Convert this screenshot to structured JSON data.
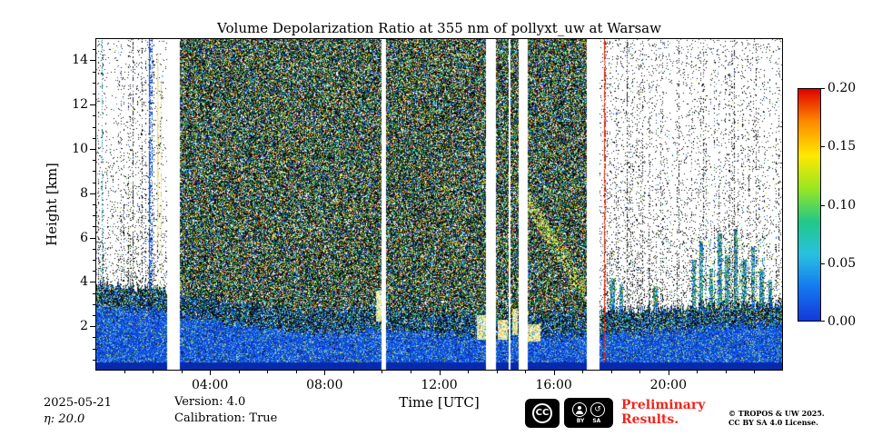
{
  "header": {
    "title": "Volume Depolarization Ratio at 355 nm of pollyxt_uw at Warsaw"
  },
  "axes": {
    "xlabel": "Time [UTC]",
    "ylabel": "Height [km]",
    "x_ticks": [
      {
        "hour": 4,
        "label": "04:00"
      },
      {
        "hour": 8,
        "label": "08:00"
      },
      {
        "hour": 12,
        "label": "12:00"
      },
      {
        "hour": 16,
        "label": "16:00"
      },
      {
        "hour": 20,
        "label": "20:00"
      }
    ],
    "y_ticks": [
      {
        "km": 2,
        "label": "2"
      },
      {
        "km": 4,
        "label": "4"
      },
      {
        "km": 6,
        "label": "6"
      },
      {
        "km": 8,
        "label": "8"
      },
      {
        "km": 10,
        "label": "10"
      },
      {
        "km": 12,
        "label": "12"
      },
      {
        "km": 14,
        "label": "14"
      }
    ]
  },
  "colorbar": {
    "tick_labels_top_to_bottom": [
      "0.20",
      "0.15",
      "0.10",
      "0.05",
      "0.00"
    ],
    "colors_top_to_bottom": [
      "#e00000",
      "#ff8c00",
      "#ffe800",
      "#9ae622",
      "#22c888",
      "#28c0e0",
      "#1478f0",
      "#1338d8"
    ]
  },
  "footer": {
    "date": "2025-05-21",
    "eta": "η: 20.0",
    "version": "Version: 4.0",
    "calibration": "Calibration: True",
    "preliminary_line1": "Preliminary",
    "preliminary_line2": "Results.",
    "copyright_line1": "© TROPOS & UW 2025.",
    "copyright_line2": "CC BY SA 4.0 License.",
    "cc": {
      "cc": "CC",
      "by": "BY",
      "sa": "SA",
      "sa_symbol": "↺"
    }
  },
  "chart_data": {
    "type": "heatmap",
    "title": "Volume Depolarization Ratio at 355 nm of pollyxt_uw at Warsaw",
    "xlabel": "Time [UTC]",
    "ylabel": "Height [km]",
    "xlim_hours": [
      0,
      24
    ],
    "ylim_km": [
      0,
      15
    ],
    "value_range": [
      0.0,
      0.2
    ],
    "colormap": "jet",
    "x_tick_hours": [
      4,
      8,
      12,
      16,
      20
    ],
    "x_tick_labels": [
      "04:00",
      "08:00",
      "12:00",
      "16:00",
      "20:00"
    ],
    "y_tick_km": [
      2,
      4,
      6,
      8,
      10,
      12,
      14
    ],
    "colorbar_ticks": [
      0.0,
      0.05,
      0.1,
      0.15,
      0.2
    ],
    "data_gaps_hours": [
      [
        2.52,
        2.95
      ],
      [
        10.0,
        10.13
      ],
      [
        13.63,
        13.98
      ],
      [
        14.42,
        14.5
      ],
      [
        14.78,
        15.08
      ],
      [
        17.15,
        17.6
      ]
    ],
    "dense_noise_region_hours": [
      2.95,
      17.15
    ],
    "sparse_regions_hours": [
      [
        0,
        2.52
      ],
      [
        17.6,
        24
      ]
    ],
    "surface_layer_top_km": [
      [
        0,
        3.9
      ],
      [
        2,
        3.7
      ],
      [
        4,
        3.2
      ],
      [
        6,
        2.9
      ],
      [
        8,
        2.7
      ],
      [
        10,
        2.9
      ],
      [
        12,
        2.6
      ],
      [
        14,
        2.5
      ],
      [
        16,
        2.6
      ],
      [
        18,
        2.7
      ],
      [
        20,
        2.8
      ],
      [
        22,
        3.0
      ],
      [
        24,
        3.0
      ]
    ],
    "bright_patches": [
      {
        "t": [
          9.8,
          10.0
        ],
        "h": [
          2.2,
          3.6
        ]
      },
      {
        "t": [
          13.3,
          13.62
        ],
        "h": [
          1.4,
          2.5
        ]
      },
      {
        "t": [
          14.05,
          14.4
        ],
        "h": [
          1.4,
          2.3
        ]
      },
      {
        "t": [
          14.55,
          14.75
        ],
        "h": [
          1.6,
          2.8
        ]
      },
      {
        "t": [
          15.1,
          15.55
        ],
        "h": [
          1.3,
          2.1
        ]
      }
    ],
    "descending_layer": {
      "t": [
        14.9,
        17.1
      ],
      "h_start": 8.0,
      "h_end": 3.6,
      "width_km": 1.0
    },
    "vertical_lines": [
      {
        "t": 0.22,
        "h": [
          3.8,
          15
        ],
        "color": "#0a8890",
        "p": 0.45,
        "w": 1
      },
      {
        "t": 1.3,
        "h": [
          3.8,
          15
        ],
        "color": "#222222",
        "p": 0.5,
        "w": 1
      },
      {
        "t": 1.62,
        "h": [
          3.8,
          15
        ],
        "color": "#1a1a1a",
        "p": 0.35,
        "w": 1
      },
      {
        "t": 1.86,
        "h": [
          3.6,
          15
        ],
        "color": "#0a50d8",
        "p": 0.9,
        "w": 2
      },
      {
        "t": 1.98,
        "h": [
          3.6,
          15
        ],
        "color": "#083cb0",
        "p": 0.5,
        "w": 1
      },
      {
        "t": 2.16,
        "h": [
          5.5,
          14.2
        ],
        "color": "#e6dc8c",
        "p": 0.75,
        "w": 2
      },
      {
        "t": 2.28,
        "h": [
          4.5,
          13
        ],
        "color": "#d8cc5a",
        "p": 0.45,
        "w": 1
      },
      {
        "t": 17.75,
        "h": [
          0.4,
          15
        ],
        "color": "#d42a10",
        "p": 0.9,
        "w": 2
      },
      {
        "t": 18.55,
        "h": [
          4,
          15
        ],
        "color": "#202020",
        "p": 0.4,
        "w": 1
      },
      {
        "t": 19.1,
        "h": [
          4,
          15
        ],
        "color": "#202020",
        "p": 0.3,
        "w": 1
      },
      {
        "t": 20.35,
        "h": [
          4,
          15
        ],
        "color": "#202020",
        "p": 0.35,
        "w": 1
      },
      {
        "t": 21.2,
        "h": [
          4,
          15
        ],
        "color": "#282828",
        "p": 0.3,
        "w": 1
      },
      {
        "t": 22.3,
        "h": [
          3.5,
          15
        ],
        "color": "#202020",
        "p": 0.35,
        "w": 1
      },
      {
        "t": 23.05,
        "h": [
          3.5,
          15
        ],
        "color": "#282828",
        "p": 0.3,
        "w": 1
      }
    ],
    "right_spikes": [
      [
        18.05,
        4.2
      ],
      [
        18.35,
        3.9
      ],
      [
        19.55,
        3.8
      ],
      [
        20.9,
        5.0
      ],
      [
        21.15,
        5.8
      ],
      [
        21.5,
        4.6
      ],
      [
        21.8,
        6.2
      ],
      [
        22.05,
        5.2
      ],
      [
        22.35,
        6.4
      ],
      [
        22.65,
        5.0
      ],
      [
        22.95,
        5.6
      ],
      [
        23.25,
        4.6
      ],
      [
        23.55,
        4.1
      ]
    ],
    "low_colored_region": {
      "t": [
        20.8,
        23.6
      ],
      "h_max": 6.0
    }
  }
}
